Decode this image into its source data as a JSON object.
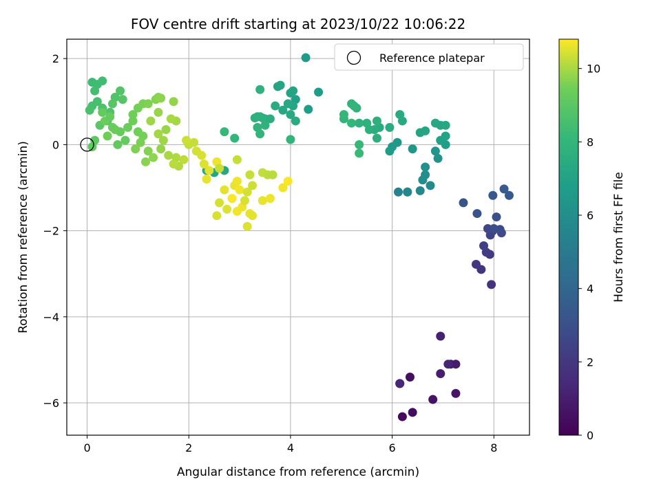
{
  "chart_data": {
    "type": "scatter",
    "title": "FOV centre drift starting at 2023/10/22 10:06:22",
    "xlabel": "Angular distance from reference (arcmin)",
    "ylabel": "Rotation from reference (arcmin)",
    "xlim": [
      -0.4,
      8.7
    ],
    "ylim": [
      -6.75,
      2.45
    ],
    "xticks": [
      0,
      2,
      4,
      6,
      8
    ],
    "yticks": [
      -6,
      -4,
      -2,
      0,
      2
    ],
    "grid": true,
    "legend": {
      "label": "Reference platepar",
      "placement": "top-right"
    },
    "reference_point": {
      "x": 0,
      "y": 0
    },
    "colorbar": {
      "label": "Hours from first FF file",
      "colormap": "viridis",
      "range": [
        0,
        10.8
      ],
      "ticks": [
        0,
        2,
        4,
        6,
        8,
        10
      ]
    },
    "points": [
      [
        6.15,
        -5.55,
        0.1
      ],
      [
        6.2,
        -6.32,
        0.3
      ],
      [
        6.4,
        -6.22,
        0.4
      ],
      [
        6.35,
        -5.4,
        0.5
      ],
      [
        6.8,
        -5.92,
        0.6
      ],
      [
        7.25,
        -5.78,
        0.7
      ],
      [
        7.15,
        -5.1,
        0.8
      ],
      [
        7.25,
        -5.1,
        0.9
      ],
      [
        6.95,
        -5.32,
        1.0
      ],
      [
        6.95,
        -4.45,
        1.1
      ],
      [
        7.1,
        -5.1,
        1.2
      ],
      [
        6.15,
        -5.55,
        1.3
      ],
      [
        7.95,
        -3.25,
        1.8
      ],
      [
        7.75,
        -2.9,
        1.9
      ],
      [
        7.65,
        -2.78,
        2.0
      ],
      [
        7.92,
        -2.55,
        2.1
      ],
      [
        7.85,
        -2.5,
        2.2
      ],
      [
        7.8,
        -2.35,
        2.3
      ],
      [
        7.93,
        -2.1,
        2.4
      ],
      [
        7.98,
        -2.0,
        2.5
      ],
      [
        7.88,
        -1.95,
        2.6
      ],
      [
        8.12,
        -1.97,
        2.7
      ],
      [
        8.15,
        -2.05,
        2.8
      ],
      [
        8.0,
        -1.95,
        2.9
      ],
      [
        8.05,
        -1.68,
        3.0
      ],
      [
        7.67,
        -1.6,
        3.1
      ],
      [
        7.4,
        -1.35,
        3.2
      ],
      [
        7.98,
        -1.18,
        3.3
      ],
      [
        8.3,
        -1.18,
        3.4
      ],
      [
        8.2,
        -1.03,
        3.5
      ],
      [
        6.12,
        -1.1,
        5.4
      ],
      [
        6.3,
        -1.1,
        5.5
      ],
      [
        6.3,
        -1.1,
        5.6
      ],
      [
        6.55,
        -1.07,
        5.7
      ],
      [
        6.75,
        -0.95,
        5.8
      ],
      [
        6.6,
        -0.82,
        5.9
      ],
      [
        6.65,
        -0.7,
        6.0
      ],
      [
        6.65,
        -0.52,
        6.1
      ],
      [
        6.9,
        -0.32,
        6.2
      ],
      [
        6.85,
        -0.15,
        6.3
      ],
      [
        6.4,
        -0.1,
        6.4
      ],
      [
        6.1,
        0.05,
        6.5
      ],
      [
        6.0,
        -0.05,
        6.6
      ],
      [
        5.95,
        -0.15,
        6.7
      ],
      [
        7.05,
        0.0,
        6.8
      ],
      [
        6.95,
        0.1,
        6.9
      ],
      [
        7.05,
        0.2,
        7.0
      ],
      [
        6.55,
        0.28,
        7.1
      ],
      [
        6.65,
        0.32,
        7.15
      ],
      [
        6.95,
        0.45,
        7.2
      ],
      [
        6.85,
        0.5,
        7.25
      ],
      [
        7.05,
        0.45,
        7.3
      ],
      [
        6.2,
        0.55,
        7.35
      ],
      [
        6.15,
        0.7,
        7.4
      ],
      [
        5.95,
        0.4,
        7.45
      ],
      [
        5.75,
        0.4,
        7.5
      ],
      [
        5.65,
        0.35,
        7.55
      ],
      [
        5.7,
        0.15,
        7.6
      ],
      [
        5.55,
        0.35,
        7.65
      ],
      [
        5.7,
        0.55,
        7.7
      ],
      [
        5.5,
        0.5,
        7.75
      ],
      [
        5.35,
        0.5,
        7.8
      ],
      [
        5.3,
        0.85,
        7.85
      ],
      [
        5.2,
        0.95,
        7.9
      ],
      [
        5.25,
        0.9,
        7.95
      ],
      [
        5.05,
        0.6,
        8.0
      ],
      [
        5.05,
        0.7,
        8.05
      ],
      [
        5.2,
        0.5,
        8.1
      ],
      [
        5.35,
        0.0,
        8.15
      ],
      [
        5.35,
        -0.2,
        8.2
      ],
      [
        4.3,
        2.02,
        6.6
      ],
      [
        4.55,
        1.22,
        6.7
      ],
      [
        4.35,
        0.82,
        6.8
      ],
      [
        4.1,
        1.05,
        6.9
      ],
      [
        4.0,
        1.2,
        7.0
      ],
      [
        4.05,
        1.25,
        7.05
      ],
      [
        3.75,
        1.35,
        7.1
      ],
      [
        3.8,
        1.38,
        7.15
      ],
      [
        4.05,
        0.9,
        7.2
      ],
      [
        3.95,
        0.95,
        7.25
      ],
      [
        3.85,
        0.8,
        7.3
      ],
      [
        4.0,
        0.7,
        7.35
      ],
      [
        4.1,
        0.55,
        7.4
      ],
      [
        3.7,
        0.9,
        7.45
      ],
      [
        3.5,
        0.6,
        7.5
      ],
      [
        3.6,
        0.6,
        7.55
      ],
      [
        3.45,
        0.62,
        7.6
      ],
      [
        3.4,
        0.65,
        7.65
      ],
      [
        3.35,
        0.65,
        7.7
      ],
      [
        3.3,
        0.62,
        7.75
      ],
      [
        3.4,
        1.28,
        7.8
      ],
      [
        3.5,
        0.45,
        7.85
      ],
      [
        3.35,
        0.4,
        7.9
      ],
      [
        3.4,
        0.25,
        7.95
      ],
      [
        4.0,
        0.12,
        8.0
      ],
      [
        2.9,
        0.15,
        8.05
      ],
      [
        2.7,
        0.3,
        8.1
      ],
      [
        2.7,
        -0.6,
        7.3
      ],
      [
        2.35,
        -0.6,
        7.4
      ],
      [
        2.5,
        -0.65,
        7.2
      ],
      [
        0.1,
        1.45,
        8.3
      ],
      [
        0.2,
        1.4,
        8.35
      ],
      [
        0.3,
        1.48,
        8.4
      ],
      [
        0.15,
        1.25,
        8.45
      ],
      [
        0.2,
        1.0,
        8.5
      ],
      [
        0.1,
        0.9,
        8.55
      ],
      [
        0.05,
        0.8,
        8.6
      ],
      [
        0.3,
        0.85,
        8.65
      ],
      [
        0.45,
        0.75,
        8.7
      ],
      [
        0.55,
        1.1,
        8.75
      ],
      [
        0.65,
        1.25,
        8.8
      ],
      [
        0.7,
        1.05,
        8.85
      ],
      [
        0.5,
        0.95,
        8.9
      ],
      [
        0.4,
        0.55,
        8.95
      ],
      [
        0.25,
        0.45,
        9.0
      ],
      [
        0.15,
        0.1,
        9.05
      ],
      [
        0.1,
        -0.05,
        9.1
      ],
      [
        0.6,
        0.0,
        9.15
      ],
      [
        0.75,
        0.1,
        9.2
      ],
      [
        0.65,
        0.3,
        9.25
      ],
      [
        0.5,
        0.4,
        9.3
      ],
      [
        0.35,
        0.55,
        9.35
      ],
      [
        0.4,
        0.2,
        9.4
      ],
      [
        0.9,
        0.7,
        9.45
      ],
      [
        1.0,
        0.85,
        9.5
      ],
      [
        1.1,
        0.95,
        9.55
      ],
      [
        1.2,
        0.95,
        9.6
      ],
      [
        1.35,
        1.05,
        9.65
      ],
      [
        1.4,
        1.1,
        9.7
      ],
      [
        1.45,
        1.08,
        9.75
      ],
      [
        1.7,
        1.0,
        9.8
      ],
      [
        1.4,
        0.75,
        9.85
      ],
      [
        1.25,
        0.55,
        9.9
      ],
      [
        1.75,
        0.55,
        9.95
      ],
      [
        1.65,
        0.6,
        10.0
      ],
      [
        0.3,
        0.75,
        9.2
      ],
      [
        0.45,
        0.65,
        9.25
      ],
      [
        0.55,
        0.35,
        9.3
      ],
      [
        0.8,
        0.4,
        9.35
      ],
      [
        0.9,
        0.55,
        9.4
      ],
      [
        1.0,
        0.3,
        9.45
      ],
      [
        1.1,
        0.2,
        9.5
      ],
      [
        1.05,
        0.05,
        9.55
      ],
      [
        0.95,
        -0.1,
        9.6
      ],
      [
        1.2,
        -0.15,
        9.65
      ],
      [
        1.15,
        -0.4,
        9.7
      ],
      [
        1.3,
        -0.3,
        9.75
      ],
      [
        1.45,
        -0.1,
        9.8
      ],
      [
        1.55,
        0.35,
        9.85
      ],
      [
        1.5,
        0.1,
        9.9
      ],
      [
        1.4,
        0.25,
        9.95
      ],
      [
        1.6,
        -0.25,
        10.0
      ],
      [
        1.75,
        -0.3,
        10.05
      ],
      [
        1.8,
        -0.5,
        10.1
      ],
      [
        1.7,
        -0.45,
        10.15
      ],
      [
        1.9,
        -0.35,
        10.2
      ],
      [
        2.0,
        0.0,
        10.25
      ],
      [
        2.1,
        0.05,
        10.3
      ],
      [
        1.95,
        0.1,
        10.35
      ],
      [
        2.15,
        -0.15,
        10.4
      ],
      [
        2.25,
        -0.25,
        10.45
      ],
      [
        2.3,
        -0.45,
        10.5
      ],
      [
        2.4,
        -0.6,
        10.55
      ],
      [
        2.35,
        -0.8,
        10.6
      ],
      [
        2.55,
        -0.4,
        10.65
      ],
      [
        2.6,
        -0.55,
        10.3
      ],
      [
        2.6,
        -1.35,
        10.4
      ],
      [
        2.55,
        -1.65,
        10.45
      ],
      [
        2.75,
        -1.5,
        10.5
      ],
      [
        2.7,
        -1.05,
        10.55
      ],
      [
        2.9,
        -0.95,
        10.6
      ],
      [
        2.95,
        -0.85,
        10.65
      ],
      [
        3.0,
        -1.05,
        10.7
      ],
      [
        2.85,
        -1.25,
        10.75
      ],
      [
        2.95,
        -1.55,
        10.7
      ],
      [
        3.05,
        -1.45,
        10.65
      ],
      [
        3.2,
        -1.6,
        10.6
      ],
      [
        3.25,
        -1.65,
        10.55
      ],
      [
        3.15,
        -1.9,
        10.5
      ],
      [
        3.1,
        -1.3,
        10.45
      ],
      [
        3.15,
        -1.1,
        10.4
      ],
      [
        3.25,
        -0.95,
        10.35
      ],
      [
        3.2,
        -0.7,
        10.3
      ],
      [
        3.45,
        -0.65,
        10.25
      ],
      [
        3.55,
        -0.7,
        10.2
      ],
      [
        3.65,
        -0.7,
        10.15
      ],
      [
        3.45,
        -1.3,
        10.6
      ],
      [
        3.6,
        -1.25,
        10.65
      ],
      [
        3.85,
        -1.0,
        10.7
      ],
      [
        3.95,
        -0.85,
        10.75
      ],
      [
        2.95,
        -0.35,
        10.3
      ]
    ]
  }
}
